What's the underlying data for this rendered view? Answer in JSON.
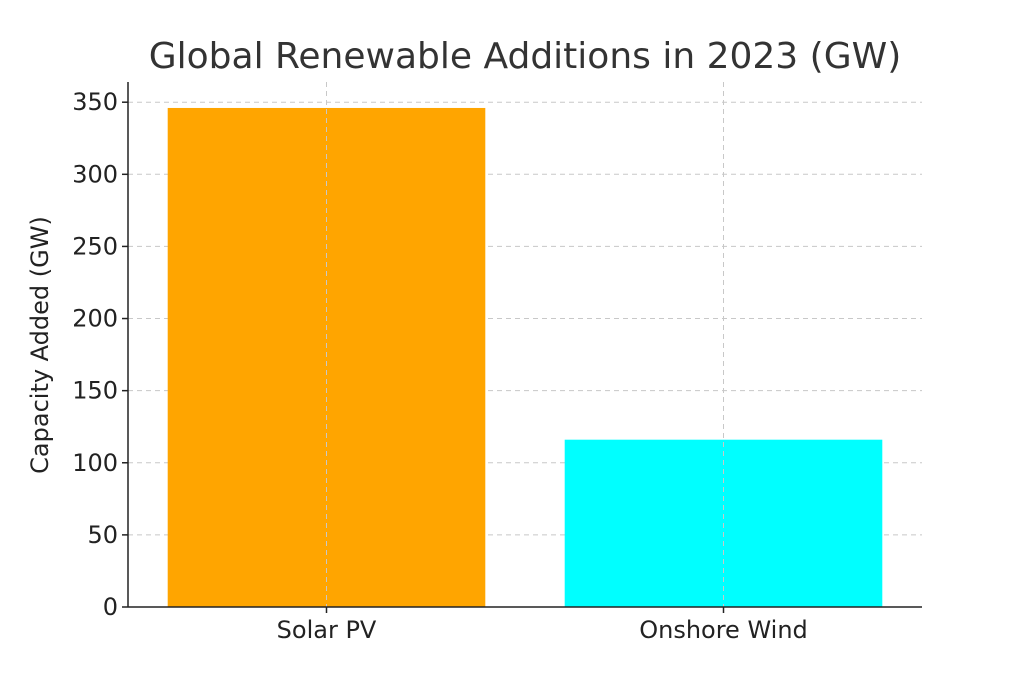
{
  "chart_data": {
    "type": "bar",
    "title": "Global Renewable Additions in 2023 (GW)",
    "xlabel": "",
    "ylabel": "Capacity Added (GW)",
    "categories": [
      "Solar PV",
      "Onshore Wind"
    ],
    "values": [
      346,
      116
    ],
    "colors": [
      "#FFA500",
      "#00FFFF"
    ],
    "ylim": [
      0,
      364
    ],
    "yticks": [
      0,
      50,
      100,
      150,
      200,
      250,
      300,
      350
    ],
    "grid": true
  }
}
